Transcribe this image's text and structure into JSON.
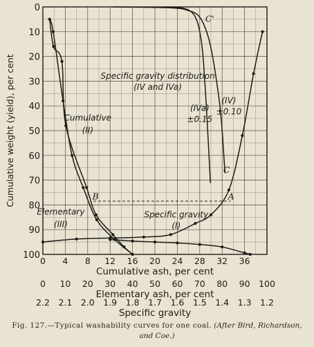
{
  "chart_data": {
    "type": "line",
    "axes": {
      "cumulative_ash": {
        "label": "Cumulative ash, per cent",
        "range": [
          0,
          40
        ],
        "ticks": [
          "0",
          "4",
          "8",
          "12",
          "16",
          "20",
          "24",
          "28",
          "32",
          "36"
        ]
      },
      "elementary_ash": {
        "label": "Elementary ash, per cent",
        "range": [
          0,
          100
        ],
        "ticks": [
          "0",
          "10",
          "20",
          "30",
          "40",
          "50",
          "60",
          "70",
          "80",
          "90",
          "100"
        ]
      },
      "specific_gravity": {
        "label": "Specific gravity",
        "range": [
          2.2,
          1.2
        ],
        "ticks": [
          "2.2",
          "2.1",
          "2.0",
          "1.9",
          "1.8",
          "1.7",
          "1.6",
          "1.5",
          "1.4",
          "1.3",
          "1.2"
        ]
      },
      "yield": {
        "label": "Cumulative weight (yield), per cent",
        "range": [
          0,
          100
        ],
        "inverted": true,
        "ticks": [
          "0",
          "10",
          "20",
          "30",
          "40",
          "50",
          "60",
          "70",
          "80",
          "90",
          "100"
        ]
      },
      "grid": true
    },
    "series": [
      {
        "id": "II",
        "curve": "cumulative-curve",
        "x_axis": "cumulative_ash",
        "points": [
          [
            1.2,
            5
          ],
          [
            1.9,
            16
          ],
          [
            3.4,
            22
          ],
          [
            4.1,
            48
          ],
          [
            7.8,
            73
          ],
          [
            9.5,
            84
          ],
          [
            12.5,
            92
          ],
          [
            14.5,
            97
          ],
          [
            16,
            100
          ]
        ]
      },
      {
        "id": "III",
        "curve": "elementary-curve",
        "x_axis": "elementary_ash",
        "points": [
          [
            3,
            5
          ],
          [
            4.6,
            10
          ],
          [
            9,
            38
          ],
          [
            13,
            60
          ],
          [
            18,
            73
          ],
          [
            24,
            86
          ],
          [
            32,
            94
          ],
          [
            40,
            100
          ]
        ]
      },
      {
        "id": "I",
        "curve": "specific-gravity-curve",
        "x_axis": "specific_gravity",
        "points": [
          [
            2.2,
            95
          ],
          [
            2.05,
            93.8
          ],
          [
            1.9,
            93.4
          ],
          [
            1.75,
            93
          ],
          [
            1.63,
            92
          ],
          [
            1.52,
            87.5
          ],
          [
            1.45,
            84
          ],
          [
            1.37,
            74
          ],
          [
            1.31,
            52
          ],
          [
            1.26,
            27
          ],
          [
            1.22,
            10
          ]
        ]
      },
      {
        "id": "IV",
        "curve": "distribution-curve",
        "x_axis": "cumulative_ash",
        "points": [
          [
            12.5,
            0
          ],
          [
            23,
            0.4
          ],
          [
            26,
            1.5
          ],
          [
            27.5,
            3
          ],
          [
            28.5,
            6
          ],
          [
            29.5,
            12
          ],
          [
            30.3,
            20
          ],
          [
            31,
            30
          ],
          [
            31.6,
            40
          ],
          [
            32,
            50
          ],
          [
            32.3,
            60
          ],
          [
            32.5,
            67
          ]
        ]
      },
      {
        "id": "IVa",
        "curve": "distribution-curve",
        "x_axis": "cumulative_ash",
        "points": [
          [
            22,
            0
          ],
          [
            25,
            0.5
          ],
          [
            26.5,
            2
          ],
          [
            27.4,
            5
          ],
          [
            28,
            10
          ],
          [
            28.5,
            18
          ],
          [
            28.9,
            30
          ],
          [
            29.3,
            45
          ],
          [
            29.6,
            58
          ],
          [
            29.9,
            71
          ]
        ]
      },
      {
        "id": "bottom",
        "curve": "ash-yield-curve",
        "x_axis": "cumulative_ash",
        "points": [
          [
            12,
            94
          ],
          [
            16,
            94.6
          ],
          [
            20,
            95
          ],
          [
            24,
            95.4
          ],
          [
            28,
            96
          ],
          [
            32,
            97
          ],
          [
            36,
            99.4
          ],
          [
            37,
            100
          ]
        ]
      }
    ],
    "reference_line": {
      "style": "dashed",
      "y": 78.5,
      "x_from": 9,
      "x_to": 33.5,
      "x_axis": "cumulative_ash"
    },
    "point_labels": [
      {
        "text": "A",
        "x": 33.6,
        "y": 77.8,
        "x_axis": "cumulative_ash"
      },
      {
        "text": "B",
        "x": 9.4,
        "y": 77.8,
        "x_axis": "cumulative_ash"
      },
      {
        "text": "C",
        "x": 32.8,
        "y": 67,
        "x_axis": "cumulative_ash"
      },
      {
        "text": "C'",
        "x": 29.8,
        "y": 6,
        "x_axis": "cumulative_ash"
      }
    ],
    "annotations": [
      {
        "text": "Specific gravity distribution",
        "x": 20.5,
        "y": 29,
        "x_axis": "cumulative_ash",
        "style": "italic"
      },
      {
        "text": "(IV and IVa)",
        "x": 20.5,
        "y": 33.5,
        "x_axis": "cumulative_ash",
        "style": "italic"
      },
      {
        "text": "(IVa)",
        "x": 28,
        "y": 42,
        "x_axis": "cumulative_ash",
        "style": "italic"
      },
      {
        "text": "±0.15",
        "x": 28,
        "y": 46.5,
        "x_axis": "cumulative_ash",
        "style": "italic"
      },
      {
        "text": "(IV)",
        "x": 33.2,
        "y": 39,
        "x_axis": "cumulative_ash",
        "style": "italic"
      },
      {
        "text": "±0.10",
        "x": 33.2,
        "y": 43.5,
        "x_axis": "cumulative_ash",
        "style": "italic"
      },
      {
        "text": "Cumulative",
        "x": 8,
        "y": 46,
        "x_axis": "cumulative_ash",
        "style": "italic"
      },
      {
        "text": "(II)",
        "x": 8,
        "y": 51,
        "x_axis": "cumulative_ash",
        "style": "italic"
      },
      {
        "text": "Elementary",
        "x": 3.2,
        "y": 84,
        "x_axis": "cumulative_ash",
        "style": "italic"
      },
      {
        "text": "(III)",
        "x": 3.2,
        "y": 89,
        "x_axis": "cumulative_ash",
        "style": "italic"
      },
      {
        "text": "Specific gravity",
        "x": 23.8,
        "y": 85,
        "x_axis": "cumulative_ash",
        "style": "italic"
      },
      {
        "text": "(I)",
        "x": 23.8,
        "y": 89.5,
        "x_axis": "cumulative_ash",
        "style": "italic"
      }
    ]
  },
  "caption": {
    "figure_label": "Fig. 127.—Typical washability curves for one coal.",
    "citation_line1": "(After Bird, Richardson,",
    "citation_line2": "and Coe.)"
  },
  "colors": {
    "paper": "#e9e3d2",
    "ink": "#1e1b16"
  }
}
